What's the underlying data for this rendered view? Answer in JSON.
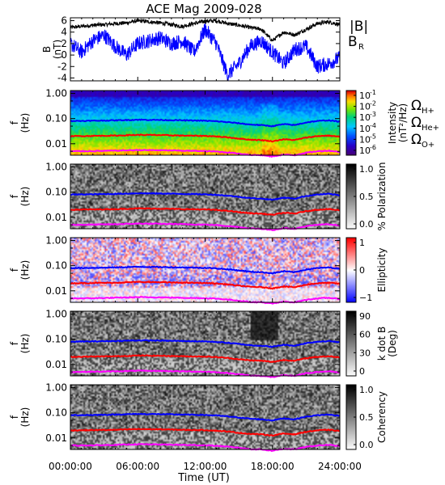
{
  "title": "ACE Mag 2009-028",
  "xlabel": "Time (UT)",
  "xticks": [
    "00:00:00",
    "06:00:00",
    "12:00:00",
    "18:00:00",
    "24:00:00"
  ],
  "colors": {
    "B_total": "#000000",
    "B_R": "#0000ff",
    "H": "#0000ff",
    "He": "#ff0000",
    "O": "#ff00ff"
  },
  "chart_data": [
    {
      "type": "line",
      "ylabel": "B\n(nT)",
      "xlim": [
        0,
        24
      ],
      "ylim": [
        -4.5,
        6.5
      ],
      "yticks": [
        "6",
        "4",
        "2",
        "0",
        "-2",
        "-4"
      ],
      "yticks_values": [
        6,
        4,
        2,
        0,
        -2,
        -4
      ],
      "legend": [
        "|B|",
        "B",
        "R"
      ],
      "series": [
        {
          "name": "|B|",
          "color": "#000000",
          "x": [
            0,
            1,
            2,
            3,
            4,
            5,
            6,
            7,
            8,
            9,
            10,
            11,
            12,
            13,
            14,
            15,
            16,
            17,
            18,
            19,
            20,
            21,
            22,
            23,
            24
          ],
          "values": [
            4.8,
            5.0,
            5.2,
            5.3,
            5.5,
            5.6,
            6.0,
            5.8,
            5.6,
            5.3,
            5.0,
            5.5,
            5.9,
            6.0,
            5.5,
            5.2,
            4.8,
            4.5,
            2.5,
            4.0,
            3.5,
            4.5,
            5.5,
            5.8,
            5.3
          ]
        },
        {
          "name": "B_R",
          "color": "#0000ff",
          "x": [
            0,
            1,
            2,
            3,
            4,
            5,
            6,
            7,
            8,
            9,
            10,
            11,
            12,
            13,
            14,
            15,
            16,
            17,
            18,
            19,
            20,
            21,
            22,
            23,
            24
          ],
          "values": [
            2.0,
            0.5,
            2.5,
            3.5,
            1.5,
            0.0,
            2.0,
            2.5,
            3.0,
            2.0,
            2.5,
            0.5,
            4.5,
            2.0,
            -3.5,
            -1.5,
            1.5,
            2.5,
            0.5,
            -1.5,
            1.0,
            1.5,
            -2.0,
            -1.5,
            -0.5
          ]
        }
      ]
    },
    {
      "type": "heatmap",
      "name": "intensity",
      "ylabel": "f\n(Hz)",
      "yticks": [
        "1.00",
        "0.10",
        "0.01"
      ],
      "yticks_values": [
        1,
        0.1,
        0.01
      ],
      "ylim": [
        0.0035,
        1.3
      ],
      "colorbar": {
        "label": "Intensity\n(nT²/Hz)",
        "ticks": [
          "10",
          "10",
          "10",
          "10",
          "10",
          "10"
        ],
        "exponents": [
          "-1",
          "-2",
          "-3",
          "-4",
          "-5",
          "-6"
        ],
        "scale": "rainbow"
      },
      "legend": [
        "Ω",
        "H+",
        "Ω",
        "He+",
        "Ω",
        "O+"
      ]
    },
    {
      "type": "heatmap",
      "name": "polarization",
      "ylabel": "f\n(Hz)",
      "yticks": [
        "1.00",
        "0.10",
        "0.01"
      ],
      "yticks_values": [
        1,
        0.1,
        0.01
      ],
      "colorbar": {
        "label": "% Polarization",
        "ticks": [
          "1.0",
          "0.5",
          "0.0"
        ],
        "scale": "gray"
      }
    },
    {
      "type": "heatmap",
      "name": "ellipticity",
      "ylabel": "f\n(Hz)",
      "yticks": [
        "1.00",
        "0.10",
        "0.01"
      ],
      "yticks_values": [
        1,
        0.1,
        0.01
      ],
      "colorbar": {
        "label": "Ellipticity",
        "ticks": [
          "1",
          "0",
          "−1"
        ],
        "scale": "bwr"
      }
    },
    {
      "type": "heatmap",
      "name": "kdotb",
      "ylabel": "f\n(Hz)",
      "yticks": [
        "1.00",
        "0.10",
        "0.01"
      ],
      "yticks_values": [
        1,
        0.1,
        0.01
      ],
      "colorbar": {
        "label": "k dot B\n(Deg)",
        "ticks": [
          "90",
          "60",
          "30",
          "0"
        ],
        "scale": "gray"
      }
    },
    {
      "type": "heatmap",
      "name": "coherency",
      "ylabel": "f\n(Hz)",
      "yticks": [
        "1.00",
        "0.10",
        "0.01"
      ],
      "yticks_values": [
        1,
        0.1,
        0.01
      ],
      "colorbar": {
        "label": "Coherency",
        "ticks": [
          "1.0",
          "0.5",
          "0.0"
        ],
        "scale": "gray"
      }
    }
  ],
  "gyro_lines": {
    "x": [
      0,
      2,
      4,
      6,
      8,
      10,
      12,
      13,
      14,
      15,
      16,
      17,
      18,
      19,
      20,
      21,
      22,
      23,
      24
    ],
    "H+": [
      0.08,
      0.082,
      0.085,
      0.09,
      0.088,
      0.085,
      0.082,
      0.078,
      0.072,
      0.065,
      0.058,
      0.055,
      0.05,
      0.06,
      0.055,
      0.07,
      0.08,
      0.085,
      0.075
    ],
    "He+": [
      0.02,
      0.0205,
      0.021,
      0.0225,
      0.022,
      0.021,
      0.0205,
      0.0195,
      0.018,
      0.016,
      0.0145,
      0.014,
      0.0125,
      0.015,
      0.014,
      0.0175,
      0.02,
      0.021,
      0.019
    ],
    "O+": [
      0.005,
      0.0051,
      0.0053,
      0.0056,
      0.0055,
      0.0053,
      0.0051,
      0.0049,
      0.0045,
      0.0041,
      0.0036,
      0.0035,
      0.0031,
      0.0037,
      0.0035,
      0.0044,
      0.005,
      0.0053,
      0.0047
    ]
  }
}
